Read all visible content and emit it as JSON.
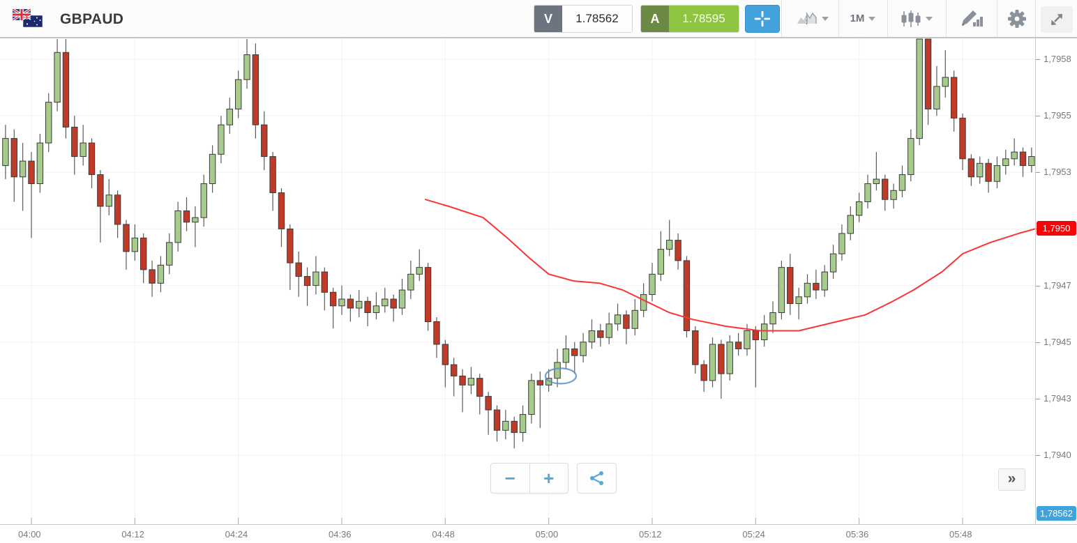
{
  "header": {
    "symbol": "GBPAUD",
    "sell_button": {
      "label": "V",
      "value": "1.78562"
    },
    "buy_button": {
      "label": "A",
      "value": "1.78595"
    },
    "timeframe": "1M",
    "icons": [
      "uk-flag",
      "australia-flag",
      "crosshair-icon",
      "compare-charts-icon",
      "chart-type-candles-icon",
      "draw-tools-icon",
      "gear-icon",
      "expand-icon"
    ]
  },
  "footer_controls": {
    "zoom_out": "−",
    "zoom_in": "+",
    "collapse": "»"
  },
  "colors": {
    "up_candle": "#a7cb8d",
    "down_candle": "#c03a27",
    "candle_border": "#3a3a3a",
    "wick": "#5a5a5a",
    "ma_line": "#fb3434",
    "grid": "#f1f1f1",
    "axis_text": "#76797c",
    "tag_red": "#f40606",
    "tag_blue": "#3fa3de",
    "accent_blue": "#42a3dc",
    "buy_green": "#8ec440",
    "sell_gray": "#6e7380",
    "annotation_blue": "#5b8fc9"
  },
  "chart_data": {
    "type": "candlestick",
    "title": "GBPAUD 1-minute candlestick chart with moving average",
    "start_time": "03:57",
    "interval_min": 1,
    "ohlc_format": "[open,high,low,close] in pips above 1.7900 (value = 1.79 + pips*0.0001)",
    "x_axis": {
      "ticks": [
        {
          "label": "04:00",
          "index": 3
        },
        {
          "label": "04:12",
          "index": 15
        },
        {
          "label": "04:24",
          "index": 27
        },
        {
          "label": "04:36",
          "index": 39
        },
        {
          "label": "04:48",
          "index": 51
        },
        {
          "label": "05:00",
          "index": 63
        },
        {
          "label": "05:12",
          "index": 75
        },
        {
          "label": "05:24",
          "index": 87
        },
        {
          "label": "05:36",
          "index": 99
        },
        {
          "label": "05:48",
          "index": 111
        }
      ]
    },
    "y_axis": {
      "levels": [
        {
          "label": "1,7958",
          "pips": 57.5
        },
        {
          "label": "1,7955",
          "pips": 55
        },
        {
          "label": "1,7953",
          "pips": 52.5
        },
        {
          "label": "1,7950",
          "pips": 50
        },
        {
          "label": "1,7947",
          "pips": 47.5
        },
        {
          "label": "1,7945",
          "pips": 45
        },
        {
          "label": "1,7943",
          "pips": 42.5
        },
        {
          "label": "1,7940",
          "pips": 40
        }
      ],
      "ma_tag": "1,7950",
      "bid_tag": "1,78562"
    },
    "candles": [
      [
        52.8,
        54.6,
        52.2,
        54.0
      ],
      [
        54.0,
        54.4,
        51.2,
        52.3
      ],
      [
        52.3,
        53.8,
        50.8,
        53.0
      ],
      [
        53.0,
        53.4,
        49.6,
        52.0
      ],
      [
        52.0,
        54.2,
        51.6,
        53.8
      ],
      [
        53.8,
        56.0,
        53.4,
        55.6
      ],
      [
        55.6,
        58.4,
        55.2,
        57.8
      ],
      [
        57.8,
        58.4,
        54.0,
        54.5
      ],
      [
        54.5,
        55.0,
        52.4,
        53.2
      ],
      [
        53.2,
        54.6,
        52.8,
        53.8
      ],
      [
        53.8,
        54.0,
        51.8,
        52.4
      ],
      [
        52.4,
        52.6,
        49.4,
        51.0
      ],
      [
        51.0,
        52.2,
        50.6,
        51.5
      ],
      [
        51.5,
        51.7,
        49.6,
        50.2
      ],
      [
        50.2,
        50.4,
        48.2,
        49.0
      ],
      [
        49.0,
        50.2,
        48.6,
        49.6
      ],
      [
        49.6,
        49.8,
        47.6,
        48.2
      ],
      [
        48.2,
        48.6,
        47.0,
        47.6
      ],
      [
        47.6,
        48.8,
        47.2,
        48.4
      ],
      [
        48.4,
        49.8,
        48.0,
        49.4
      ],
      [
        49.4,
        51.2,
        49.0,
        50.8
      ],
      [
        50.8,
        51.4,
        49.9,
        50.3
      ],
      [
        50.3,
        51.0,
        49.2,
        50.5
      ],
      [
        50.5,
        52.4,
        50.1,
        52.0
      ],
      [
        52.0,
        53.7,
        51.6,
        53.3
      ],
      [
        53.3,
        55.0,
        52.9,
        54.6
      ],
      [
        54.6,
        55.8,
        54.2,
        55.3
      ],
      [
        55.3,
        57.0,
        54.9,
        56.6
      ],
      [
        56.6,
        58.5,
        56.2,
        57.7
      ],
      [
        57.7,
        58.2,
        54.0,
        54.6
      ],
      [
        54.6,
        55.2,
        52.6,
        53.2
      ],
      [
        53.2,
        53.4,
        50.8,
        51.6
      ],
      [
        51.6,
        51.8,
        49.2,
        50.0
      ],
      [
        50.0,
        50.2,
        47.3,
        48.5
      ],
      [
        48.5,
        49.0,
        47.0,
        47.9
      ],
      [
        47.9,
        48.3,
        46.6,
        47.5
      ],
      [
        47.5,
        48.8,
        47.1,
        48.1
      ],
      [
        48.1,
        48.3,
        46.4,
        47.2
      ],
      [
        47.2,
        47.4,
        45.6,
        46.6
      ],
      [
        46.6,
        47.5,
        46.2,
        46.9
      ],
      [
        46.9,
        47.1,
        45.9,
        46.5
      ],
      [
        46.5,
        47.3,
        46.1,
        46.8
      ],
      [
        46.8,
        47.0,
        45.7,
        46.3
      ],
      [
        46.3,
        47.2,
        46.0,
        46.6
      ],
      [
        46.6,
        47.4,
        46.3,
        46.9
      ],
      [
        46.9,
        47.1,
        45.9,
        46.5
      ],
      [
        46.5,
        47.8,
        46.2,
        47.3
      ],
      [
        47.3,
        48.6,
        46.9,
        48.0
      ],
      [
        48.0,
        49.1,
        47.7,
        48.3
      ],
      [
        48.3,
        48.5,
        45.5,
        45.9
      ],
      [
        45.9,
        46.1,
        44.3,
        44.9
      ],
      [
        44.9,
        45.1,
        43.0,
        44.0
      ],
      [
        44.0,
        44.3,
        42.6,
        43.5
      ],
      [
        43.5,
        43.8,
        41.9,
        43.1
      ],
      [
        43.1,
        43.9,
        42.7,
        43.4
      ],
      [
        43.4,
        43.6,
        41.8,
        42.6
      ],
      [
        42.6,
        42.8,
        40.9,
        42.0
      ],
      [
        42.0,
        42.2,
        40.6,
        41.1
      ],
      [
        41.1,
        42.0,
        40.7,
        41.5
      ],
      [
        41.5,
        41.7,
        40.3,
        41.0
      ],
      [
        41.0,
        42.2,
        40.6,
        41.8
      ],
      [
        41.8,
        43.6,
        41.4,
        43.3
      ],
      [
        43.3,
        43.7,
        41.2,
        43.1
      ],
      [
        43.1,
        43.8,
        42.8,
        43.4
      ],
      [
        43.4,
        44.7,
        43.0,
        44.1
      ],
      [
        44.1,
        45.3,
        43.8,
        44.7
      ],
      [
        44.7,
        45.0,
        43.6,
        44.4
      ],
      [
        44.4,
        45.4,
        44.1,
        45.0
      ],
      [
        45.0,
        46.0,
        44.7,
        45.5
      ],
      [
        45.5,
        45.8,
        44.8,
        45.2
      ],
      [
        45.2,
        46.3,
        44.9,
        45.8
      ],
      [
        45.8,
        46.7,
        45.5,
        46.2
      ],
      [
        46.2,
        46.4,
        44.9,
        45.6
      ],
      [
        45.6,
        46.9,
        45.3,
        46.4
      ],
      [
        46.4,
        47.6,
        46.1,
        47.1
      ],
      [
        47.1,
        48.5,
        46.8,
        48.0
      ],
      [
        48.0,
        49.9,
        47.7,
        49.1
      ],
      [
        49.1,
        50.4,
        48.8,
        49.5
      ],
      [
        49.5,
        49.8,
        48.2,
        48.6
      ],
      [
        48.6,
        48.8,
        45.2,
        45.5
      ],
      [
        45.5,
        45.7,
        43.6,
        44.0
      ],
      [
        44.0,
        44.2,
        42.8,
        43.3
      ],
      [
        43.3,
        45.2,
        43.0,
        44.9
      ],
      [
        44.9,
        45.1,
        42.5,
        43.6
      ],
      [
        43.6,
        45.3,
        43.3,
        45.0
      ],
      [
        45.0,
        45.4,
        44.4,
        44.7
      ],
      [
        44.7,
        45.8,
        44.4,
        45.5
      ],
      [
        45.5,
        45.7,
        43.0,
        45.1
      ],
      [
        45.1,
        46.2,
        44.8,
        45.8
      ],
      [
        45.8,
        46.8,
        45.4,
        46.3
      ],
      [
        46.3,
        48.6,
        46.0,
        48.3
      ],
      [
        48.3,
        48.9,
        46.2,
        46.7
      ],
      [
        46.7,
        47.4,
        46.0,
        47.0
      ],
      [
        47.0,
        48.0,
        46.7,
        47.6
      ],
      [
        47.6,
        48.2,
        46.9,
        47.3
      ],
      [
        47.3,
        48.4,
        47.0,
        48.1
      ],
      [
        48.1,
        49.3,
        47.8,
        48.9
      ],
      [
        48.9,
        50.2,
        48.6,
        49.8
      ],
      [
        49.8,
        51.0,
        49.5,
        50.6
      ],
      [
        50.6,
        51.6,
        50.3,
        51.2
      ],
      [
        51.2,
        52.4,
        50.9,
        52.0
      ],
      [
        52.0,
        53.4,
        51.7,
        52.2
      ],
      [
        52.2,
        52.4,
        50.8,
        51.3
      ],
      [
        51.3,
        52.0,
        50.9,
        51.7
      ],
      [
        51.7,
        52.8,
        51.4,
        52.4
      ],
      [
        52.4,
        54.4,
        52.1,
        54.0
      ],
      [
        54.0,
        58.8,
        53.7,
        58.4
      ],
      [
        58.4,
        58.8,
        54.6,
        55.3
      ],
      [
        55.3,
        57.2,
        55.0,
        56.3
      ],
      [
        56.3,
        57.9,
        55.8,
        56.7
      ],
      [
        56.7,
        57.0,
        54.3,
        54.9
      ],
      [
        54.9,
        55.1,
        52.6,
        53.1
      ],
      [
        53.1,
        53.3,
        51.9,
        52.3
      ],
      [
        52.3,
        53.2,
        52.0,
        52.9
      ],
      [
        52.9,
        53.1,
        51.6,
        52.1
      ],
      [
        52.1,
        53.2,
        51.8,
        52.8
      ],
      [
        52.8,
        53.5,
        52.4,
        53.1
      ],
      [
        53.1,
        54.0,
        52.8,
        53.4
      ],
      [
        53.4,
        53.6,
        52.3,
        52.8
      ],
      [
        52.8,
        53.6,
        52.5,
        53.2
      ]
    ],
    "overlays": {
      "moving_average": {
        "color": "#fb3434",
        "points_index_pips": [
          [
            48.7,
            51.3
          ],
          [
            51.4,
            51.0
          ],
          [
            55.4,
            50.5
          ],
          [
            58.2,
            49.6
          ],
          [
            60.8,
            48.7
          ],
          [
            63,
            48.0
          ],
          [
            65.9,
            47.7
          ],
          [
            68.9,
            47.6
          ],
          [
            71.6,
            47.3
          ],
          [
            74.3,
            46.8
          ],
          [
            77,
            46.3
          ],
          [
            79.7,
            46.0
          ],
          [
            83.5,
            45.7
          ],
          [
            87.5,
            45.5
          ],
          [
            92,
            45.5
          ],
          [
            96.4,
            45.9
          ],
          [
            99.7,
            46.2
          ],
          [
            102.9,
            46.8
          ],
          [
            105.3,
            47.3
          ],
          [
            108.6,
            48.1
          ],
          [
            111,
            48.9
          ],
          [
            114.2,
            49.4
          ],
          [
            117.5,
            49.8
          ],
          [
            119.4,
            50.0
          ]
        ]
      },
      "annotation_ellipse": {
        "index": 64.4,
        "pips": 43.5
      }
    }
  }
}
